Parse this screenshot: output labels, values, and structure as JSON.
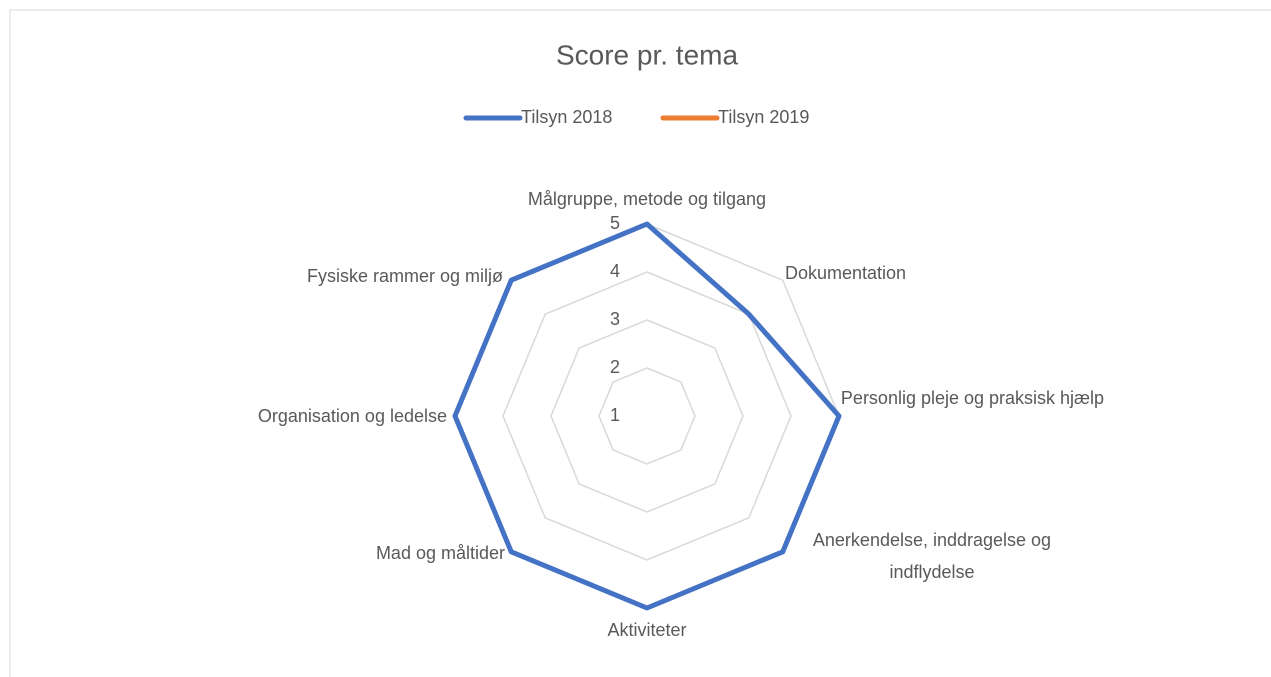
{
  "chart_data": {
    "type": "radar",
    "title": "Score pr. tema",
    "categories": [
      "Målgruppe, metode og tilgang",
      "Dokumentation",
      "Personlig pleje og praksisk hjælp",
      "Anerkendelse, inddragelse og indflydelse",
      "Aktiviteter",
      "Mad og måltider",
      "Organisation og ledelse",
      "Fysiske rammer og miljø"
    ],
    "series": [
      {
        "name": "Tilsyn 2018",
        "color": "#4472c4",
        "values": [
          5,
          4,
          5,
          5,
          5,
          5,
          5,
          5
        ]
      },
      {
        "name": "Tilsyn 2019",
        "color": "#ed7d31",
        "values": [
          null,
          null,
          null,
          null,
          null,
          null,
          null,
          null
        ]
      }
    ],
    "ylim": [
      1,
      5
    ],
    "yticks": [
      1,
      2,
      3,
      4,
      5
    ],
    "grid": true,
    "legend": "top"
  }
}
